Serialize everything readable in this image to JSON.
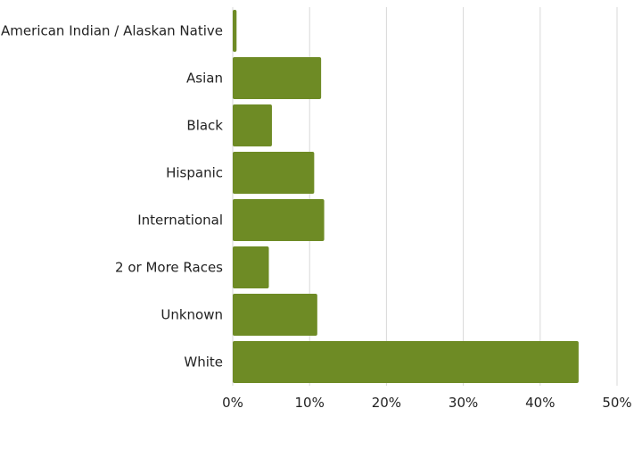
{
  "chart_data": {
    "type": "bar",
    "orientation": "horizontal",
    "title": "",
    "xlabel": "",
    "ylabel": "",
    "categories": [
      "American Indian / Alaskan Native",
      "Asian",
      "Black",
      "Hispanic",
      "International",
      "2 or More Races",
      "Unknown",
      "White"
    ],
    "values": [
      0.5,
      11.5,
      5.1,
      10.6,
      11.9,
      4.7,
      11.0,
      45.0
    ],
    "xlim": [
      0,
      50
    ],
    "xticks": [
      "0%",
      "10%",
      "20%",
      "30%",
      "40%",
      "50%"
    ],
    "grid": "vertical",
    "legend": "none",
    "bar_color": "#6e8b25",
    "grid_color": "#d9d9d9"
  }
}
